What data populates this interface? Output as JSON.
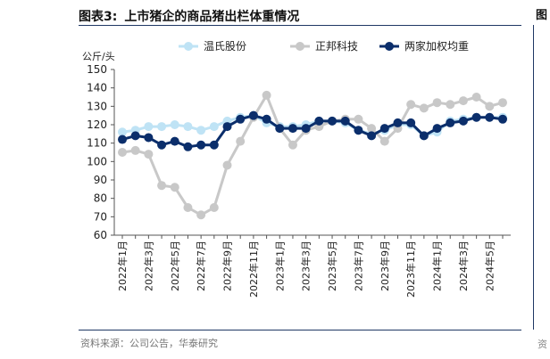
{
  "figure": {
    "number": "图表3:",
    "title": "上市猪企的商品猪出栏体重情况",
    "source": "资料来源：公司公告，华泰研究",
    "right_edge_glyph": "图",
    "right_edge_glyph_2": "资"
  },
  "chart_data": {
    "type": "line",
    "title": "",
    "ylabel": "公斤/头",
    "xlabel": "",
    "ylim": [
      60,
      150
    ],
    "yticks": [
      60,
      70,
      80,
      90,
      100,
      110,
      120,
      130,
      140,
      150
    ],
    "grid": false,
    "legend": "top",
    "categories": [
      "2022年1月",
      "2022年2月",
      "2022年3月",
      "2022年4月",
      "2022年5月",
      "2022年6月",
      "2022年7月",
      "2022年8月",
      "2022年9月",
      "2022年10月",
      "2022年11月",
      "2022年12月",
      "2023年1月",
      "2023年2月",
      "2023年3月",
      "2023年4月",
      "2023年5月",
      "2023年6月",
      "2023年7月",
      "2023年8月",
      "2023年9月",
      "2023年10月",
      "2023年11月",
      "2023年12月",
      "2024年1月",
      "2024年2月",
      "2024年3月",
      "2024年4月",
      "2024年5月",
      "2024年6月"
    ],
    "x_tick_labels": [
      "2022年1月",
      "2022年3月",
      "2022年5月",
      "2022年7月",
      "2022年9月",
      "2022年11月",
      "2023年1月",
      "2023年3月",
      "2023年5月",
      "2023年7月",
      "2023年9月",
      "2023年11月",
      "2024年1月",
      "2024年3月",
      "2024年5月"
    ],
    "series": [
      {
        "name": "温氏股份",
        "color": "#bfe3f5",
        "marker": "circle",
        "values": [
          116,
          117,
          119,
          119,
          120,
          119,
          117,
          119,
          122,
          124,
          125,
          121,
          119,
          119,
          120,
          122,
          122,
          121,
          117,
          115,
          117,
          120,
          120,
          114,
          116,
          122,
          123,
          124,
          124,
          124
        ]
      },
      {
        "name": "正邦科技",
        "color": "#c8c8c8",
        "marker": "circle",
        "values": [
          105,
          106,
          104,
          87,
          86,
          75,
          71,
          75,
          98,
          111,
          124,
          136,
          118,
          109,
          117,
          119,
          122,
          123,
          123,
          118,
          111,
          118,
          131,
          129,
          132,
          131,
          133,
          135,
          130,
          132
        ]
      },
      {
        "name": "两家加权均重",
        "color": "#0b2e6b",
        "marker": "circle",
        "values": [
          112,
          114,
          113,
          109,
          111,
          108,
          109,
          109,
          119,
          123,
          125,
          123,
          118,
          118,
          118,
          122,
          122,
          122,
          117,
          114,
          118,
          121,
          121,
          114,
          118,
          121,
          122,
          124,
          124,
          123
        ]
      }
    ]
  }
}
